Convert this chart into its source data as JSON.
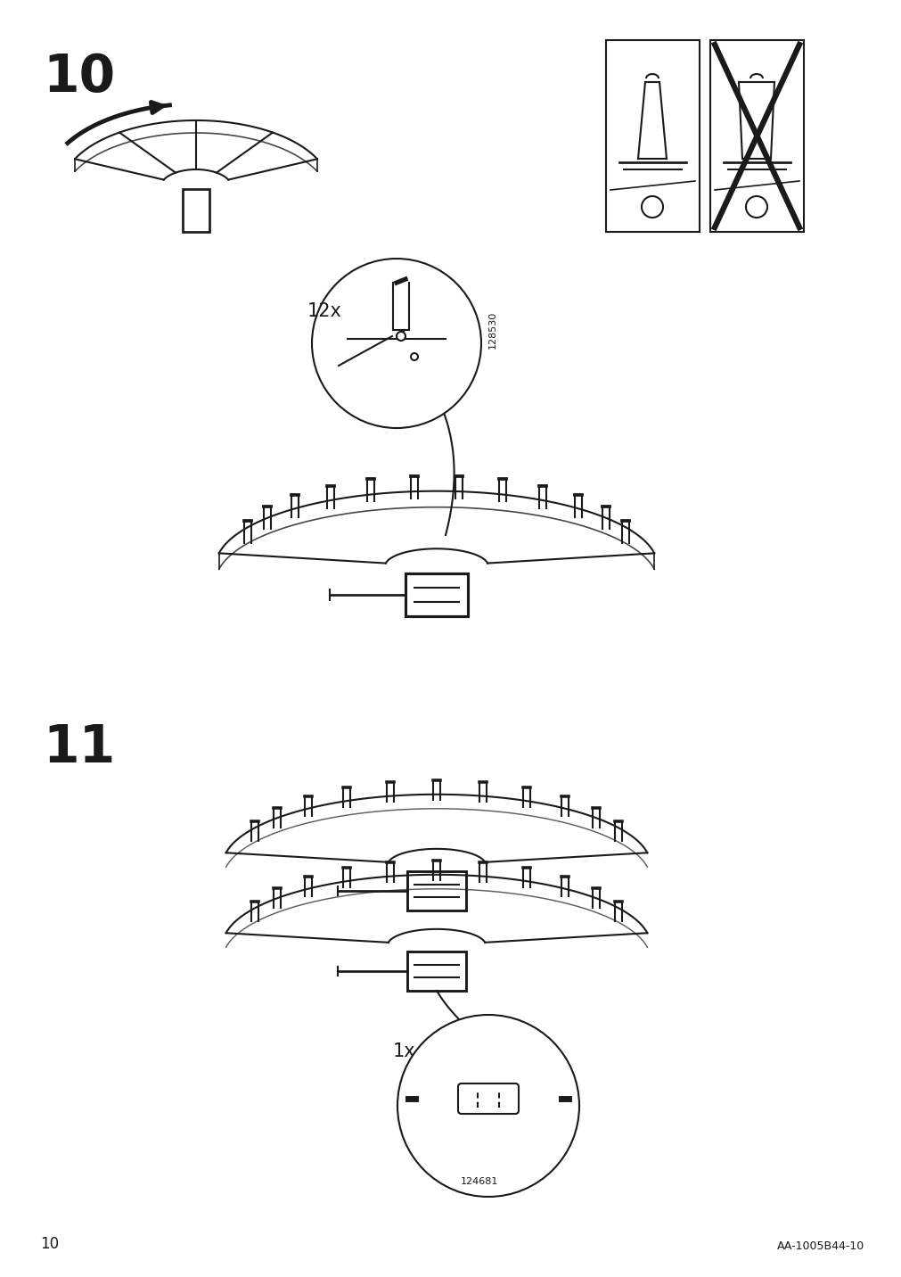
{
  "page_number": "10",
  "doc_code": "AA-1005B44-10",
  "step10_label": "10",
  "step11_label": "11",
  "qty_screw": "12x",
  "part_screw": "128530",
  "qty_connector": "1x",
  "part_connector": "124681",
  "bg_color": "#ffffff",
  "line_color": "#1a1a1a",
  "lw": 1.5,
  "hlw": 3.5,
  "fig_w": 10.12,
  "fig_h": 14.32,
  "dpi": 100
}
